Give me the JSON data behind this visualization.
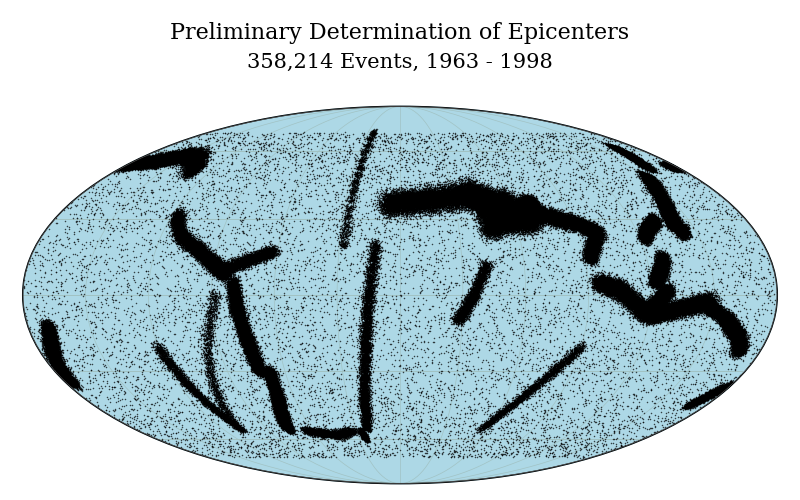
{
  "title_line1": "Preliminary Determination of Epicenters",
  "title_line2": "358,214 Events, 1963 - 1998",
  "title_fontsize": 16,
  "subtitle_fontsize": 15,
  "background_color": "#ffffff",
  "ocean_color": "#add8e6",
  "land_color": "#ffffff",
  "border_color": "#808080",
  "grid_color": "#a0c0c0",
  "point_color": "#000000",
  "point_size": 1.2,
  "seed": 42,
  "fig_width": 8.0,
  "fig_height": 5.0,
  "dpi": 100
}
